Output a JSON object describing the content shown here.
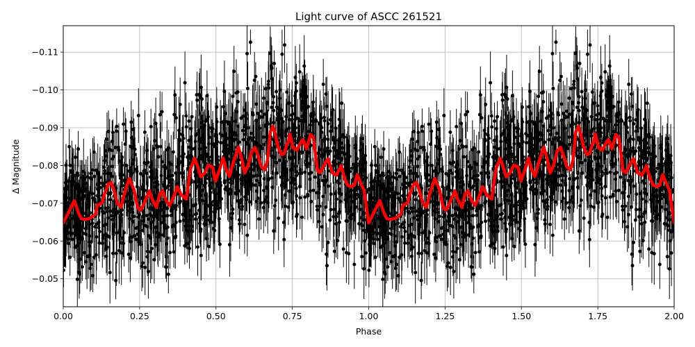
{
  "chart_data": {
    "type": "scatter",
    "title": "Light curve of ASCC 261521",
    "xlabel": "Phase",
    "ylabel": "Δ Magnitude",
    "xlim": [
      0.0,
      2.0
    ],
    "ylim": [
      -0.0426,
      -0.117
    ],
    "y_inverted": true,
    "grid": true,
    "legend": null,
    "xticks": [
      0.0,
      0.25,
      0.5,
      0.75,
      1.0,
      1.25,
      1.5,
      1.75,
      2.0
    ],
    "xtick_labels": [
      "0.00",
      "0.25",
      "0.50",
      "0.75",
      "1.00",
      "1.25",
      "1.50",
      "1.75",
      "2.00"
    ],
    "yticks": [
      -0.11,
      -0.1,
      -0.09,
      -0.08,
      -0.07,
      -0.06,
      -0.05
    ],
    "ytick_labels": [
      "−0.11",
      "−0.10",
      "−0.09",
      "−0.08",
      "−0.07",
      "−0.06",
      "−0.05"
    ],
    "series": [
      {
        "name": "observations",
        "kind": "errorbar-scatter",
        "color": "#000000",
        "description": "Dense phase-folded photometric points with vertical error bars, spanning roughly -0.045 to -0.117 mag across phase 0-2 (period repeated twice)",
        "approx_envelope": {
          "phase": [
            0.0,
            0.1,
            0.2,
            0.3,
            0.4,
            0.5,
            0.6,
            0.7,
            0.8,
            0.9,
            1.0
          ],
          "upper": [
            -0.086,
            -0.09,
            -0.104,
            -0.1,
            -0.112,
            -0.105,
            -0.117,
            -0.117,
            -0.11,
            -0.1,
            -0.09
          ],
          "lower": [
            -0.045,
            -0.046,
            -0.046,
            -0.047,
            -0.05,
            -0.052,
            -0.055,
            -0.05,
            -0.052,
            -0.05,
            -0.047
          ]
        }
      },
      {
        "name": "binned-mean",
        "kind": "line",
        "color": "#ff0000",
        "linewidth": 4,
        "phase": [
          0.0,
          0.0137,
          0.0273,
          0.0364,
          0.0478,
          0.0592,
          0.0728,
          0.0887,
          0.1047,
          0.1115,
          0.1274,
          0.1365,
          0.1479,
          0.157,
          0.1661,
          0.1775,
          0.1889,
          0.2003,
          0.2162,
          0.2321,
          0.2435,
          0.2526,
          0.2617,
          0.2731,
          0.2822,
          0.2913,
          0.3049,
          0.3163,
          0.3254,
          0.3367,
          0.3481,
          0.3618,
          0.3731,
          0.3868,
          0.4027,
          0.4163,
          0.43,
          0.4391,
          0.4505,
          0.4619,
          0.4755,
          0.4892,
          0.4983,
          0.5119,
          0.5233,
          0.5324,
          0.5438,
          0.5575,
          0.5734,
          0.5847,
          0.5938,
          0.6052,
          0.6166,
          0.6279,
          0.6393,
          0.6484,
          0.6598,
          0.6689,
          0.678,
          0.6871,
          0.6939,
          0.703,
          0.7144,
          0.7235,
          0.7326,
          0.7372,
          0.7417,
          0.7531,
          0.7645,
          0.7759,
          0.785,
          0.7918,
          0.7963,
          0.81,
          0.8191,
          0.8328,
          0.8419,
          0.8555,
          0.8669,
          0.8805,
          0.8942,
          0.9101,
          0.9192,
          0.9306,
          0.9443,
          0.9534,
          0.9625,
          0.9738,
          0.9852,
          1.0
        ],
        "values": [
          -0.0648,
          -0.067,
          -0.0692,
          -0.0707,
          -0.0679,
          -0.0659,
          -0.0657,
          -0.0661,
          -0.067,
          -0.0694,
          -0.0701,
          -0.0729,
          -0.0751,
          -0.0755,
          -0.0733,
          -0.07,
          -0.0689,
          -0.0725,
          -0.0766,
          -0.0735,
          -0.0689,
          -0.0681,
          -0.0694,
          -0.0716,
          -0.0733,
          -0.0711,
          -0.0689,
          -0.0725,
          -0.0733,
          -0.0707,
          -0.0694,
          -0.0718,
          -0.0744,
          -0.0722,
          -0.0711,
          -0.079,
          -0.0819,
          -0.0799,
          -0.077,
          -0.0779,
          -0.0801,
          -0.0795,
          -0.0758,
          -0.0789,
          -0.082,
          -0.0792,
          -0.0771,
          -0.081,
          -0.0849,
          -0.0816,
          -0.078,
          -0.08,
          -0.0837,
          -0.0848,
          -0.0822,
          -0.0797,
          -0.0788,
          -0.0814,
          -0.0889,
          -0.0904,
          -0.0884,
          -0.0849,
          -0.0828,
          -0.0832,
          -0.0858,
          -0.0862,
          -0.0884,
          -0.0847,
          -0.084,
          -0.0858,
          -0.0869,
          -0.0853,
          -0.0844,
          -0.0882,
          -0.0873,
          -0.0785,
          -0.0781,
          -0.0803,
          -0.0818,
          -0.0781,
          -0.0774,
          -0.08,
          -0.077,
          -0.0748,
          -0.0744,
          -0.0748,
          -0.0776,
          -0.0754,
          -0.0732,
          -0.0648
        ],
        "repeats_with_period": 1.0
      }
    ]
  }
}
